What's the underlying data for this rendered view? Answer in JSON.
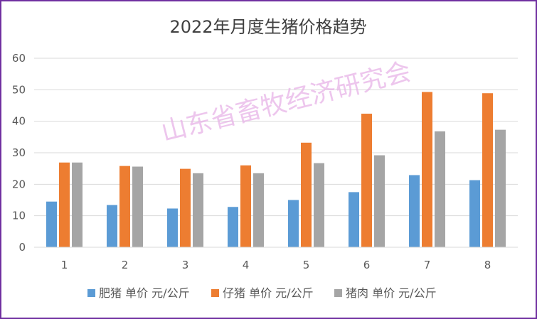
{
  "chart_data": {
    "type": "bar",
    "title": "2022年月度生猪价格趋势",
    "categories": [
      "1",
      "2",
      "3",
      "4",
      "5",
      "6",
      "7",
      "8"
    ],
    "series": [
      {
        "name": "肥猪 单价 元/公斤",
        "color": "#5B9BD5",
        "values": [
          14.5,
          13.4,
          12.3,
          12.8,
          15.0,
          17.5,
          22.9,
          21.3
        ]
      },
      {
        "name": "仔猪 单价 元/公斤",
        "color": "#ED7D31",
        "values": [
          26.9,
          25.8,
          24.9,
          26.0,
          33.2,
          42.4,
          49.3,
          48.9
        ]
      },
      {
        "name": "猪肉 单价 元/公斤",
        "color": "#A5A5A5",
        "values": [
          26.9,
          25.6,
          23.5,
          23.5,
          26.7,
          29.2,
          36.8,
          37.3
        ]
      }
    ],
    "y_ticks": [
      "0",
      "10",
      "20",
      "30",
      "40",
      "50",
      "60"
    ],
    "ylim": [
      0,
      60
    ],
    "grid": true,
    "legend_position": "bottom"
  },
  "watermark": "山东省畜牧经济研究会",
  "colors": {
    "border": "#7030A0",
    "grid": "#D9D9D9"
  }
}
